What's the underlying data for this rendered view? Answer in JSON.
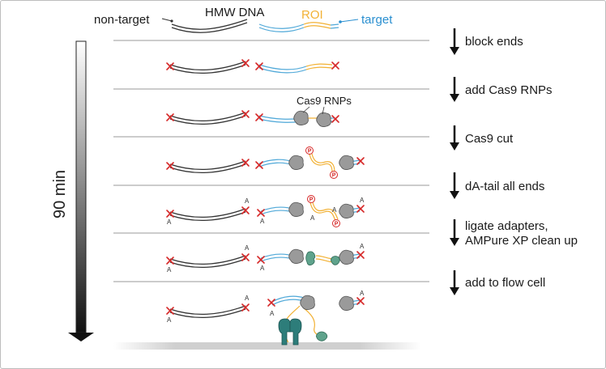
{
  "labels": {
    "non_target": "non-target",
    "hmw_dna": "HMW DNA",
    "roi": "ROI",
    "target": "target",
    "cas9_rnps": "Cas9 RNPs",
    "duration": "90 min",
    "a": "A",
    "p": "P"
  },
  "steps": [
    {
      "label": "block ends"
    },
    {
      "label": "add Cas9 RNPs"
    },
    {
      "label": "Cas9 cut"
    },
    {
      "label": "dA-tail all ends"
    },
    {
      "label": "ligate adapters,"
    },
    {
      "label": "AMPure XP clean up"
    },
    {
      "label": "add to flow cell"
    }
  ],
  "colors": {
    "dna_black": "#333333",
    "dna_blue": "#4fa8d8",
    "roi_orange": "#f2b134",
    "target_blue": "#2a8fd0",
    "cross_red": "#d62828",
    "rnp_gray": "#9a9a9a",
    "adapter_green": "#5fa38c"
  }
}
